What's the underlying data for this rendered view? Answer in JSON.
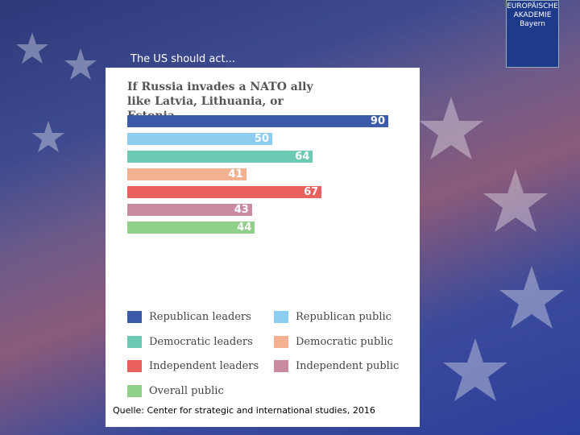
{
  "slide_title": "The US should act...",
  "source": "Quelle: Center for strategic and international studies, 2016",
  "logo": {
    "lines": [
      "EUROPÄISCHE",
      "AKADEMIE",
      "Bayern"
    ]
  },
  "chart_data": {
    "type": "bar",
    "orientation": "horizontal",
    "title": "If Russia invades a NATO ally like Latvia, Lithuania, or Estonia",
    "categories": [
      "Republican leaders",
      "Republican public",
      "Democratic leaders",
      "Democratic public",
      "Independent leaders",
      "Independent public",
      "Overall public"
    ],
    "values": [
      90,
      50,
      64,
      41,
      67,
      43,
      44
    ],
    "colors": [
      "#3b5ba9",
      "#8fcdf0",
      "#6ccab2",
      "#f2b190",
      "#e9605f",
      "#c98ba2",
      "#90d08b"
    ],
    "xlim": [
      0,
      100
    ]
  }
}
